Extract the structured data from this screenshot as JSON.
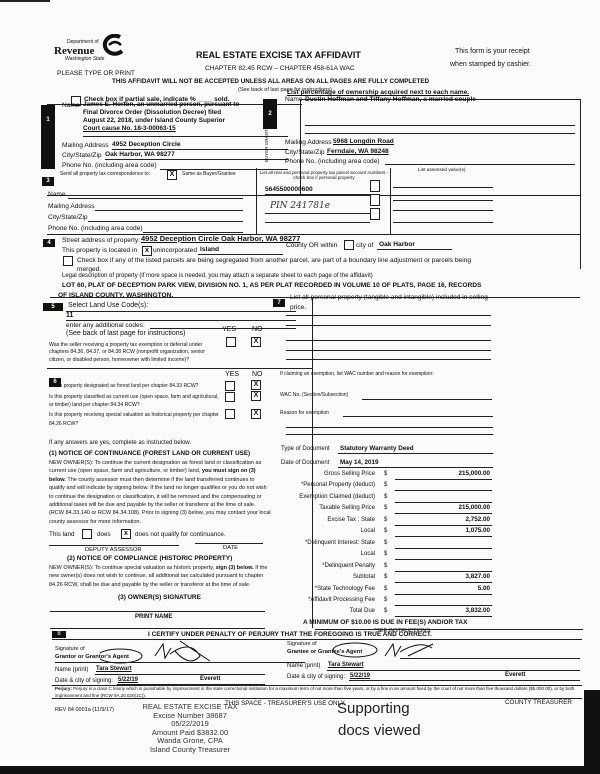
{
  "header": {
    "logo_dept": "Department of",
    "logo_name": "Revenue",
    "logo_state": "Washington State",
    "title": "REAL ESTATE EXCISE TAX AFFIDAVIT",
    "chapter": "CHAPTER 82.45 RCW – CHAPTER 458-61A WAC",
    "receipt_1": "This form is your receipt",
    "receipt_2": "when stamped by cashier.",
    "please": "PLEASE TYPE OR PRINT",
    "warning": "THIS AFFIDAVIT WILL NOT BE ACCEPTED UNLESS ALL AREAS ON ALL PAGES ARE FULLY COMPLETED",
    "see_back": "(See back of last page for instructions)"
  },
  "partial": {
    "label": "Check box if partial sale, indicate % ____ sold.",
    "checked": false
  },
  "ownership_note": "List percentage of ownership acquired next to each name.",
  "seller": {
    "num": "1",
    "side_label": "SELLER GRANTOR",
    "name_label": "Name",
    "name_lines": [
      "James E. Horton, an unmarried person, pursuant to",
      "Final Divorce Order (Dissolution Decree) filed",
      "August 22, 2018, under Island County Superior",
      "Court cause No. 18-3-00063-15"
    ],
    "mail_label": "Mailing Address",
    "mail": "4952 Deception Circle",
    "city_label": "City/State/Zip",
    "city": "Oak Harbor, WA 98277",
    "phone_label": "Phone No. (including area code)"
  },
  "buyer": {
    "num": "2",
    "side_label": "BUYER GRANTEE",
    "name_label": "Name",
    "name": "Dustin Hoffman and Tiffany Hoffman, a married couple",
    "mail_label": "Mailing Address",
    "mail": "5968 Longdin Road",
    "city_label": "City/State/Zip",
    "city": "Ferndale, WA 98248",
    "phone_label": "Phone No. (including area code)"
  },
  "section3": {
    "num": "3",
    "send_label": "Send all property tax correspondence to:",
    "same_checked": "X",
    "same_label": "Same as Buyer/Grantee",
    "name_label": "Name",
    "mail_label": "Mailing Address",
    "city_label": "City/State/Zip",
    "phone_label": "Phone No. (including area code)",
    "parcel_header": "List all real and personal property tax parcel account numbers - check box if personal property",
    "parcels": [
      "5645500000600",
      "PIN 241781e"
    ],
    "assessed_header": "List assessed value(s)"
  },
  "section4": {
    "num": "4",
    "street_label": "Street address of property:",
    "street": "4952 Deception Circle Oak Harbor, WA 98277",
    "located_label": "This property is located in",
    "unincorporated_checked": "x",
    "unincorporated_label": "unincorporated",
    "county": "Island",
    "county_label": "County OR within",
    "city_label": "city of",
    "city": "Oak Harbor",
    "segregated_label": "Check box if any of the listed parcels are being segregated from another parcel, are part of a boundary line adjustment or parcels being",
    "merged": "merged.",
    "legal_label": "Legal description of property (if more space is needed, you may attach a separate sheet to each page of the affidavit)",
    "legal_1": "LOT 60, PLAT OF DECEPTION PARK VIEW, DIVISION NO. 1, AS PER PLAT RECORDED IN VOLUME 10 OF PLATS, PAGE 16, RECORDS",
    "legal_2": "OF ISLAND COUNTY, WASHINGTON."
  },
  "section5": {
    "num": "5",
    "label": "Select Land Use Code(s):",
    "code": "11",
    "additional": "enter any additional codes:",
    "see_back": "(See back of last page for instructions)",
    "yes": "YES",
    "no": "NO",
    "question": "Was the seller receiving a property tax exemption or deferral under chapters 84.36, 84.37, or 84.38 RCW (nonprofit organization, senior citizen, or disabled person, homeowner with limited income)?",
    "answer_no": "X"
  },
  "section6": {
    "num": "6",
    "yes": "YES",
    "no": "NO",
    "questions": [
      {
        "text": "Is this property designated as forest land per chapter 84.33 RCW?",
        "no": "X"
      },
      {
        "text": "Is this property classified as current use (open space, farm and agricultural, or timber) land per chapter 84.34 RCW?",
        "no": "X"
      },
      {
        "text": "Is this property receiving special valuation as historical property per chapter 84.26 RCW?",
        "no": "X"
      }
    ],
    "if_yes": "If any answers are yes, complete as instructed below.",
    "notice1_title": "(1) NOTICE OF CONTINUANCE (FOREST LAND OR CURRENT USE)",
    "notice1_a": "NEW OWNER(S): To continue the current designation as forest land or classification as current use (open space, farm and agriculture, or timber) land,",
    "notice1_bold": "you must sign on (3) below.",
    "notice1_b": "The county assessor must then determine if the land transferred continues to qualify and will indicate by signing below. If the land no longer qualifies or you do not wish to continue the designation or classification, it will be removed and the compensating or additional taxes will be due and payable by the seller or transferor at the time of sale. (RCW 84.33.140 or RCW 84.34.108). Prior to signing (3) below, you may contact your local county assessor for more information.",
    "this_land": "This land",
    "does": "does",
    "does_not_checked": "x",
    "does_not": "does not  qualify for continuance.",
    "deputy": "DEPUTY ASSESSOR",
    "date": "DATE",
    "notice2_title": "(2) NOTICE OF COMPLIANCE (HISTORIC PROPERTY)",
    "notice2_a": "NEW OWNER(S): To continue special valuation as historic property,",
    "notice2_bold": "sign (3) below.",
    "notice2_b": "If the new owner(s) does not wish to continue, all additional tax calculated pursuant to chapter 84.26 RCW, shall be due and payable by the seller or transferor at the time of sale.",
    "owner_sig": "(3) OWNER(S) SIGNATURE",
    "print_name": "PRINT NAME"
  },
  "section7": {
    "num": "7",
    "label": "List all personal property (tangible and intangible) included in selling price.",
    "exemption_label": "If claiming an exemption, list WAC number and reason for exemption:",
    "wac_label": "WAC No. (Section/Subsection)",
    "reason_label": "Reason for exemption",
    "doc_type_label": "Type of Document",
    "doc_type": "Statutory Warranty Deed",
    "doc_date_label": "Date of Document",
    "doc_date": "May 14, 2019",
    "currency": "$",
    "rows": [
      {
        "label": "Gross Selling Price",
        "value": "215,000.00"
      },
      {
        "label": "*Personal Property (deduct)",
        "value": ""
      },
      {
        "label": "Exemption Claimed (deduct)",
        "value": ""
      },
      {
        "label": "Taxable Selling Price",
        "value": "215,000.00"
      },
      {
        "label": "Excise Tax : State",
        "value": "2,752.00"
      },
      {
        "label": "Local",
        "value": "1,075.00"
      },
      {
        "label": "*Delinquent Interest: State",
        "value": ""
      },
      {
        "label": "Local",
        "value": ""
      },
      {
        "label": "*Delinquent Penalty",
        "value": ""
      },
      {
        "label": "Subtotal",
        "value": "3,827.00"
      },
      {
        "label": "*State Technology Fee",
        "value": "5.00"
      },
      {
        "label": "*Affidavit Processing Fee",
        "value": ""
      },
      {
        "label": "Total Due",
        "value": "3,832.00"
      }
    ],
    "minimum": "A MINIMUM OF $10.00 IS DUE IN FEE(S) AND/OR TAX",
    "see_instr": "*SEE INSTRUCTIONS"
  },
  "section8": {
    "num": "8",
    "certify": "I CERTIFY UNDER PENALTY OF PERJURY THAT THE FOREGOING IS TRUE AND CORRECT.",
    "sig_of": "Signature of",
    "grantor_agent": "Grantor or Grantor's Agent",
    "grantee_agent": "Grantee or Grantee's Agent",
    "name_label": "Name (print)",
    "grantor_name": "Tara Stewart",
    "grantee_name": "Tara Stewart",
    "date_label": "Date & city of signing:",
    "grantor_date": "5/22/19",
    "grantor_city": "Everett",
    "grantee_date": "5/22/19",
    "grantee_city": "Everett",
    "perjury_bold": "Perjury:",
    "perjury": "Perjury is a class C felony which is punishable by imprisonment in the state correctional institution for a maximum term of not more than five years, or by a fine in an amount fixed by the court of not more than five thousand dollars ($5,000.00), or by both imprisonment and fine (RCW 9A.20.020(1C))."
  },
  "footer": {
    "rev": "REV 84 0001a (11/9/17)",
    "treasurer_use": "THIS SPACE - TREASURER'S USE ONLY",
    "county_treasurer": "COUNTY TREASURER",
    "stamp": [
      "REAL ESTATE EXCISE TAX",
      "Excise Number 38687",
      "05/22/2019",
      "Amount Paid $3832.00",
      "Wanda Grone, CPA",
      "Island County Treasurer"
    ],
    "supporting_1": "Supporting",
    "supporting_2": "docs viewed"
  }
}
